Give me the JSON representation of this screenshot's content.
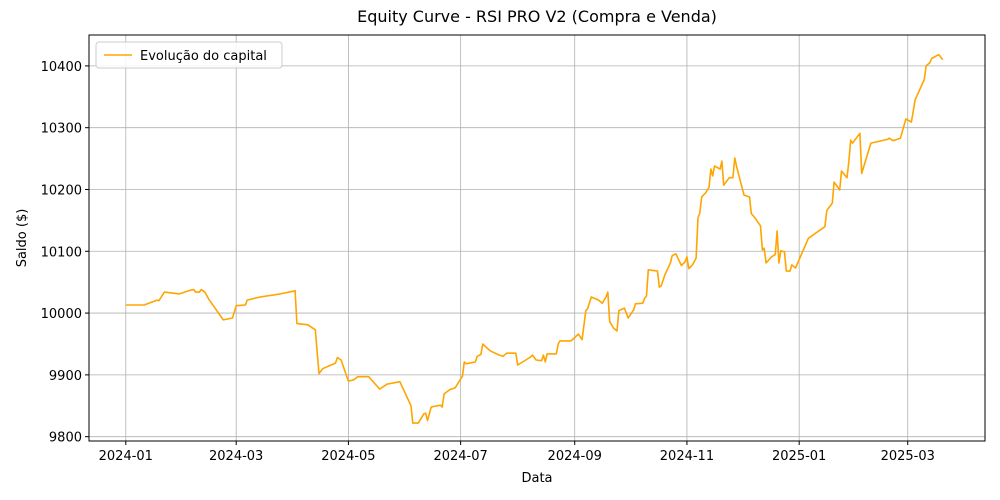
{
  "chart_data": {
    "type": "line",
    "title": "Equity Curve - RSI PRO V2 (Compra e Venda)",
    "xlabel": "Data",
    "ylabel": "Saldo ($)",
    "grid": true,
    "legend": "upper left",
    "xlim": [
      19703,
      20190
    ],
    "ylim": [
      9793,
      10450
    ],
    "xticks": [
      {
        "value": 19723,
        "label": "2024-01"
      },
      {
        "value": 19783,
        "label": "2024-03"
      },
      {
        "value": 19844,
        "label": "2024-05"
      },
      {
        "value": 19905,
        "label": "2024-07"
      },
      {
        "value": 19967,
        "label": "2024-09"
      },
      {
        "value": 20028,
        "label": "2024-11"
      },
      {
        "value": 20089,
        "label": "2025-01"
      },
      {
        "value": 20148,
        "label": "2025-03"
      }
    ],
    "yticks": [
      9800,
      9900,
      10000,
      10100,
      10200,
      10300,
      10400
    ],
    "x": [
      19723,
      19733,
      19740,
      19741,
      19744,
      19752,
      19755,
      19758,
      19760,
      19761,
      19763,
      19764,
      19766,
      19768,
      19776,
      19781,
      19783,
      19788,
      19789,
      19796,
      19807,
      19815,
      19816,
      19822,
      19826,
      19828,
      19830,
      19837,
      19838,
      19840,
      19844,
      19847,
      19849,
      19855,
      19861,
      19865,
      19872,
      19878,
      19879,
      19882,
      19885,
      19886,
      19887,
      19889,
      19894,
      19895,
      19896,
      19899,
      19902,
      19906,
      19907,
      19908,
      19913,
      19914,
      19916,
      19917,
      19921,
      19926,
      19928,
      19930,
      19935,
      19936,
      19943,
      19944,
      19946,
      19949,
      19950,
      19951,
      19952,
      19957,
      19958,
      19959,
      19965,
      19969,
      19971,
      19973,
      19974,
      19976,
      19980,
      19982,
      19984,
      19985,
      19986,
      19988,
      19990,
      19991,
      19994,
      19996,
      19999,
      20000,
      20004,
      20005,
      20006,
      20007,
      20012,
      20013,
      20014,
      20016,
      20019,
      20020,
      20022,
      20025,
      20027,
      20028,
      20029,
      20031,
      20033,
      20034,
      20035,
      20036,
      20038,
      20040,
      20041,
      20042,
      20043,
      20046,
      20047,
      20048,
      20051,
      20053,
      20054,
      20055,
      20059,
      20062,
      20063,
      20065,
      20068,
      20069,
      20070,
      20071,
      20074,
      20076,
      20077,
      20078,
      20079,
      20081,
      20082,
      20084,
      20085,
      20087,
      20094,
      20103,
      20104,
      20107,
      20108,
      20111,
      20112,
      20115,
      20116,
      20117,
      20118,
      20122,
      20123,
      20128,
      20137,
      20138,
      20140,
      20144,
      20147,
      20150,
      20152,
      20157,
      20158,
      20160,
      20161,
      20164,
      20165,
      20167
    ],
    "series": [
      {
        "name": "Evolução do capital",
        "color": "#ffa500",
        "values": [
          10013,
          10013,
          10021,
          10020,
          10034,
          10031,
          10034,
          10037,
          10038,
          10034,
          10034,
          10038,
          10034,
          10023,
          9989,
          9992,
          10012,
          10013,
          10021,
          10026,
          10031,
          10036,
          9983,
          9981,
          9973,
          9902,
          9910,
          9919,
          9928,
          9924,
          9890,
          9892,
          9897,
          9897,
          9877,
          9885,
          9889,
          9850,
          9822,
          9822,
          9837,
          9838,
          9826,
          9848,
          9851,
          9848,
          9869,
          9876,
          9879,
          9898,
          9921,
          9918,
          9921,
          9930,
          9933,
          9950,
          9939,
          9932,
          9930,
          9935,
          9935,
          9916,
          9929,
          9932,
          9924,
          9923,
          9932,
          9921,
          9934,
          9934,
          9950,
          9955,
          9955,
          9966,
          9957,
          10004,
          10007,
          10026,
          10021,
          10016,
          10026,
          10034,
          9986,
          9976,
          9971,
          10004,
          10008,
          9992,
          10005,
          10015,
          10016,
          10024,
          10028,
          10070,
          10068,
          10042,
          10044,
          10062,
          10081,
          10093,
          10096,
          10077,
          10083,
          10091,
          10072,
          10078,
          10089,
          10154,
          10162,
          10188,
          10194,
          10203,
          10233,
          10222,
          10238,
          10233,
          10246,
          10207,
          10219,
          10219,
          10251,
          10237,
          10191,
          10188,
          10161,
          10154,
          10141,
          10102,
          10105,
          10081,
          10091,
          10095,
          10133,
          10081,
          10101,
          10099,
          10068,
          10068,
          10078,
          10073,
          10121,
          10140,
          10166,
          10178,
          10212,
          10199,
          10230,
          10219,
          10246,
          10280,
          10275,
          10291,
          10226,
          10275,
          10281,
          10283,
          10279,
          10283,
          10314,
          10309,
          10345,
          10378,
          10400,
          10405,
          10412,
          10417,
          10418,
          10410
        ]
      }
    ]
  }
}
